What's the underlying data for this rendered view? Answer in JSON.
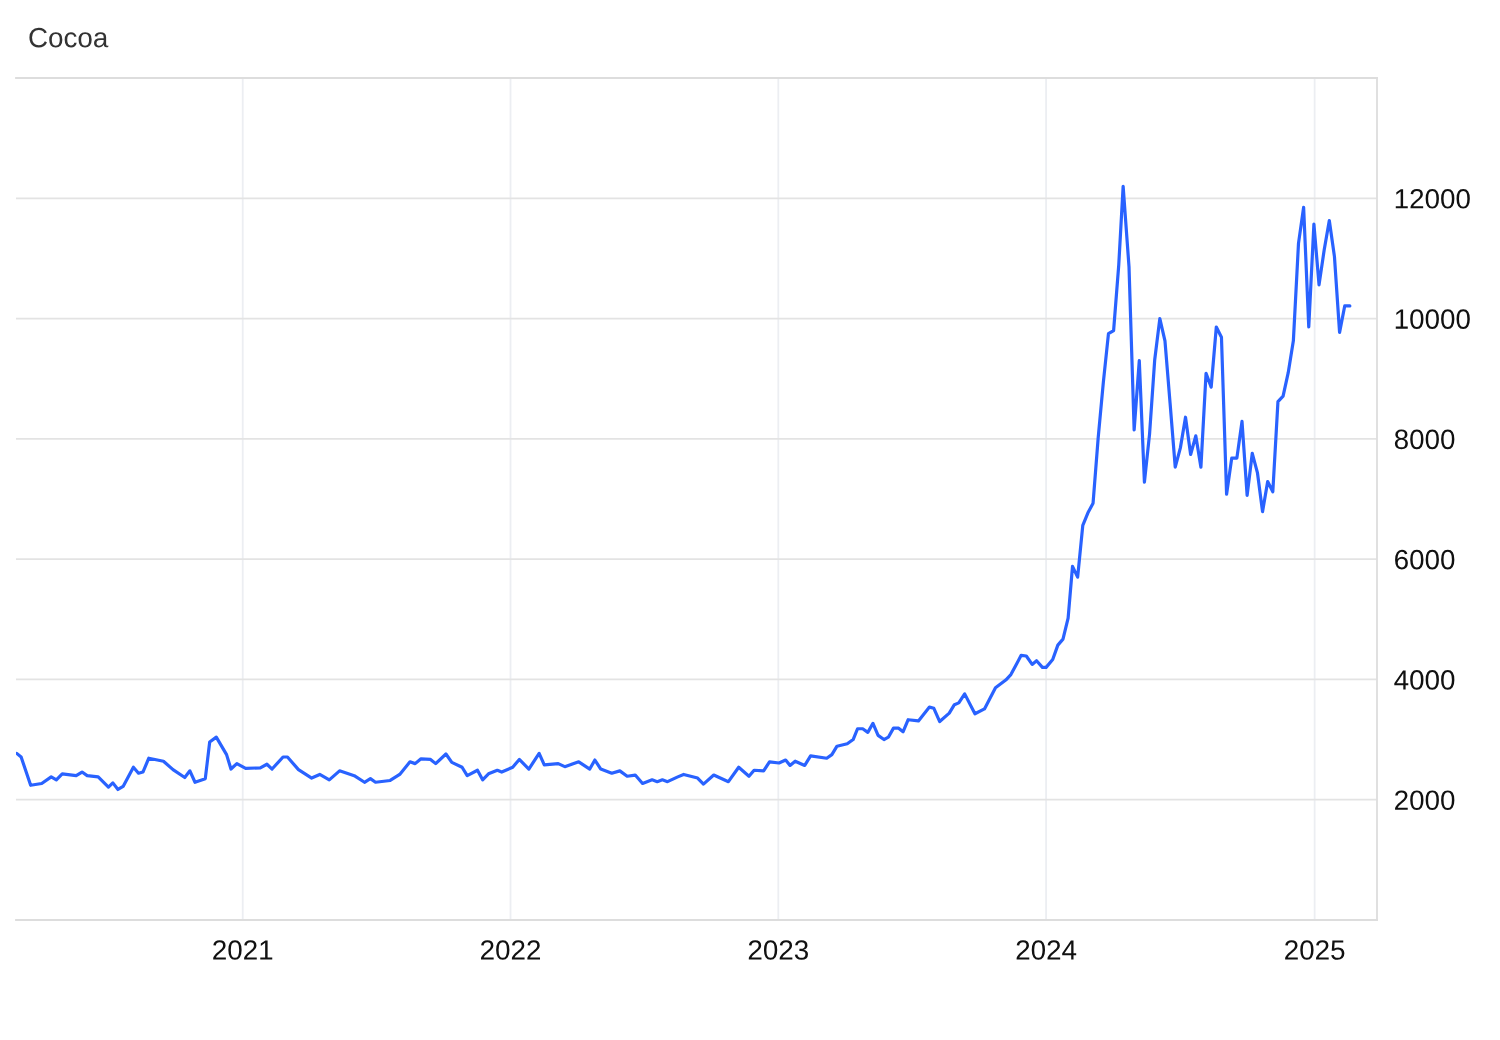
{
  "chart_data": {
    "type": "line",
    "title": "Cocoa",
    "x": [
      "2020-02-28",
      "2020-03-05",
      "2020-03-18",
      "2020-04-02",
      "2020-04-15",
      "2020-04-22",
      "2020-04-30",
      "2020-05-19",
      "2020-05-27",
      "2020-06-03",
      "2020-06-18",
      "2020-07-02",
      "2020-07-08",
      "2020-07-15",
      "2020-07-22",
      "2020-08-05",
      "2020-08-12",
      "2020-08-18",
      "2020-08-26",
      "2020-09-15",
      "2020-09-28",
      "2020-10-14",
      "2020-10-21",
      "2020-10-28",
      "2020-11-11",
      "2020-11-17",
      "2020-11-26",
      "2020-12-10",
      "2020-12-16",
      "2020-12-24",
      "2021-01-05",
      "2021-01-25",
      "2021-02-03",
      "2021-02-10",
      "2021-02-25",
      "2021-03-03",
      "2021-03-18",
      "2021-04-05",
      "2021-04-16",
      "2021-04-29",
      "2021-05-13",
      "2021-06-02",
      "2021-06-16",
      "2021-06-24",
      "2021-07-01",
      "2021-07-21",
      "2021-08-03",
      "2021-08-17",
      "2021-08-24",
      "2021-09-01",
      "2021-09-14",
      "2021-09-21",
      "2021-10-05",
      "2021-10-13",
      "2021-10-27",
      "2021-11-03",
      "2021-11-17",
      "2021-11-24",
      "2021-12-02",
      "2021-12-14",
      "2021-12-20",
      "2022-01-04",
      "2022-01-13",
      "2022-01-26",
      "2022-02-09",
      "2022-02-16",
      "2022-03-07",
      "2022-03-16",
      "2022-04-04",
      "2022-04-19",
      "2022-04-26",
      "2022-05-04",
      "2022-05-19",
      "2022-05-30",
      "2022-06-09",
      "2022-06-20",
      "2022-06-30",
      "2022-07-13",
      "2022-07-20",
      "2022-07-27",
      "2022-08-03",
      "2022-08-17",
      "2022-08-25",
      "2022-09-13",
      "2022-09-21",
      "2022-10-05",
      "2022-10-25",
      "2022-11-08",
      "2022-11-22",
      "2022-11-29",
      "2022-12-12",
      "2022-12-20",
      "2023-01-02",
      "2023-01-11",
      "2023-01-17",
      "2023-01-24",
      "2023-02-06",
      "2023-02-14",
      "2023-03-08",
      "2023-03-15",
      "2023-03-22",
      "2023-04-05",
      "2023-04-13",
      "2023-04-19",
      "2023-04-26",
      "2023-05-03",
      "2023-05-10",
      "2023-05-17",
      "2023-05-25",
      "2023-05-31",
      "2023-06-07",
      "2023-06-14",
      "2023-06-20",
      "2023-06-27",
      "2023-07-11",
      "2023-07-26",
      "2023-08-01",
      "2023-08-09",
      "2023-08-22",
      "2023-08-29",
      "2023-09-04",
      "2023-09-12",
      "2023-09-26",
      "2023-10-09",
      "2023-10-24",
      "2023-11-07",
      "2023-11-14",
      "2023-11-28",
      "2023-12-05",
      "2023-12-13",
      "2023-12-19",
      "2023-12-27",
      "2024-01-01",
      "2024-01-10",
      "2024-01-17",
      "2024-01-24",
      "2024-01-31",
      "2024-02-06",
      "2024-02-13",
      "2024-02-20",
      "2024-02-27",
      "2024-03-05",
      "2024-03-12",
      "2024-03-19",
      "2024-03-26",
      "2024-04-02",
      "2024-04-09",
      "2024-04-15",
      "2024-04-23",
      "2024-04-30",
      "2024-05-07",
      "2024-05-14",
      "2024-05-21",
      "2024-05-28",
      "2024-06-04",
      "2024-06-11",
      "2024-06-18",
      "2024-06-25",
      "2024-07-02",
      "2024-07-09",
      "2024-07-16",
      "2024-07-23",
      "2024-07-30",
      "2024-08-06",
      "2024-08-13",
      "2024-08-20",
      "2024-08-27",
      "2024-09-03",
      "2024-09-10",
      "2024-09-17",
      "2024-09-24",
      "2024-10-01",
      "2024-10-08",
      "2024-10-15",
      "2024-10-22",
      "2024-10-29",
      "2024-11-05",
      "2024-11-12",
      "2024-11-19",
      "2024-11-26",
      "2024-12-03",
      "2024-12-10",
      "2024-12-17",
      "2024-12-24",
      "2024-12-31",
      "2025-01-07",
      "2025-01-14",
      "2025-01-21",
      "2025-01-28",
      "2025-02-04",
      "2025-02-11",
      "2025-02-18"
    ],
    "series": [
      {
        "color": "#2962ff",
        "values": [
          2770,
          2710,
          2240,
          2270,
          2380,
          2330,
          2430,
          2400,
          2460,
          2400,
          2380,
          2210,
          2280,
          2170,
          2220,
          2540,
          2440,
          2460,
          2690,
          2640,
          2500,
          2370,
          2480,
          2290,
          2350,
          2960,
          3040,
          2750,
          2510,
          2600,
          2520,
          2530,
          2590,
          2510,
          2710,
          2710,
          2500,
          2360,
          2420,
          2330,
          2480,
          2400,
          2290,
          2350,
          2290,
          2320,
          2420,
          2630,
          2600,
          2680,
          2670,
          2600,
          2760,
          2620,
          2540,
          2400,
          2490,
          2330,
          2430,
          2490,
          2460,
          2540,
          2670,
          2510,
          2770,
          2580,
          2600,
          2550,
          2630,
          2510,
          2660,
          2510,
          2440,
          2480,
          2390,
          2410,
          2270,
          2330,
          2300,
          2330,
          2300,
          2380,
          2420,
          2360,
          2260,
          2410,
          2300,
          2540,
          2390,
          2490,
          2480,
          2630,
          2610,
          2660,
          2570,
          2640,
          2570,
          2730,
          2690,
          2750,
          2890,
          2930,
          3000,
          3180,
          3180,
          3120,
          3270,
          3070,
          3000,
          3040,
          3190,
          3190,
          3130,
          3330,
          3310,
          3540,
          3520,
          3300,
          3440,
          3580,
          3610,
          3760,
          3430,
          3510,
          3860,
          3990,
          4080,
          4400,
          4390,
          4250,
          4310,
          4200,
          4200,
          4330,
          4570,
          4670,
          5020,
          5880,
          5700,
          6560,
          6770,
          6930,
          8020,
          8940,
          9750,
          9800,
          10890,
          12200,
          10860,
          8150,
          9300,
          7280,
          8080,
          9310,
          10000,
          9630,
          8590,
          7530,
          7850,
          8360,
          7740,
          8050,
          7530,
          9090,
          8860,
          9860,
          9690,
          7080,
          7680,
          7680,
          8290,
          7060,
          7760,
          7440,
          6790,
          7290,
          7120,
          8620,
          8710,
          9100,
          9630,
          11250,
          11850,
          9860,
          11570,
          10560,
          11140,
          11630,
          11030,
          9770,
          10210,
          10210
        ]
      }
    ],
    "xlim": [
      "2020-02-27",
      "2025-03-27"
    ],
    "ylim": [
      0,
      14000
    ],
    "xticks": [
      "2021",
      "2022",
      "2023",
      "2024",
      "2025"
    ],
    "yticks": [
      2000,
      4000,
      6000,
      8000,
      10000,
      12000
    ],
    "grid": true,
    "line_style": "solid"
  }
}
